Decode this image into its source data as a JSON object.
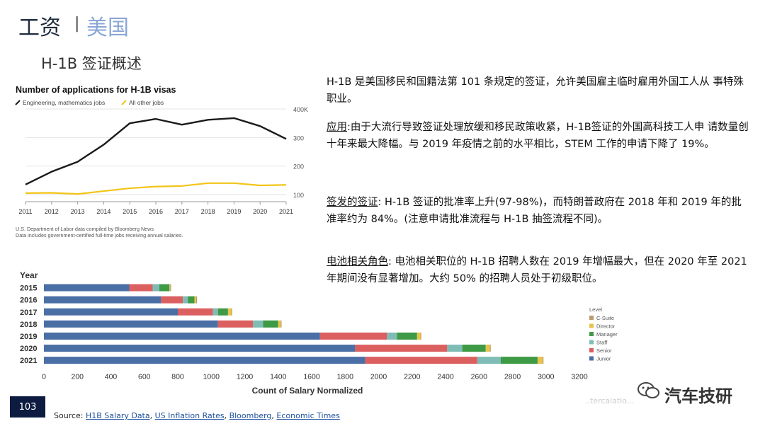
{
  "slide": {
    "title_main": "工资",
    "title_sep": "|",
    "title_region": "美国",
    "subtitle": "H-1B 签证概述",
    "page_number": "103",
    "source_prefix": "Source: ",
    "sources": [
      "H1B Salary Data",
      "US Inflation Rates",
      "Bloomberg",
      "Economic Times"
    ],
    "source_sep": ", ",
    "watermark": "汽车技研",
    "watermark_url": "..tercalatio..."
  },
  "paragraphs": {
    "intro": "H-1B 是美国移民和国籍法第 101 条规定的签证，允许美国雇主临时雇用外国工人从 事特殊职业。",
    "application_label": "应用",
    "application_text": ":由于大流行导致签证处理放缓和移民政策收紧，H-1B签证的外国高科技工人申 请数量创十年来最大降幅。与 2019 年疫情之前的水平相比，STEM 工作的申请下降了 19%。",
    "issuance_label": "签发的签证",
    "issuance_text": ": H-1B 签证的批准率上升(97-98%)，而特朗普政府在 2018 年和 2019 年的批准率约为 84%。(注意申请批准流程与 H-1B 抽签流程不同)。",
    "battery_label": "电池相关角色",
    "battery_text": ": 电池相关职位的 H-1B 招聘人数在 2019 年增幅最大，但在 2020 年至 2021 年期间没有显著增加。大约 50% 的招聘人员处于初级职位。"
  },
  "colors": {
    "line_eng": "#1a1a1a",
    "line_other": "#f2c515",
    "junior": "#4a6fa5",
    "senior": "#dc5f60",
    "staff": "#7fbcb6",
    "manager": "#3e9a45",
    "director": "#e8c44c",
    "c_suite": "#b89c6f"
  },
  "chart_data": [
    {
      "type": "line",
      "title": "Number of applications for H-1B visas",
      "x": [
        2011,
        2012,
        2013,
        2014,
        2015,
        2016,
        2017,
        2018,
        2019,
        2020,
        2021
      ],
      "series": [
        {
          "name": "Engineering, mathematics jobs",
          "values": [
            135,
            180,
            215,
            275,
            350,
            365,
            345,
            362,
            368,
            340,
            295
          ]
        },
        {
          "name": "All other jobs",
          "values": [
            105,
            106,
            102,
            112,
            122,
            128,
            130,
            140,
            140,
            132,
            134
          ]
        }
      ],
      "ylim": [
        75,
        405
      ],
      "y_ticks": [
        100,
        200,
        300,
        400
      ],
      "y_tick_labels": [
        "100",
        "200",
        "300",
        "400K"
      ],
      "legend": "top-left",
      "notes": [
        "U.S. Department of Labor data compiled by Bloomberg News",
        "Data includes government-certified full-time jobs receiving annual salaries."
      ]
    },
    {
      "type": "bar",
      "orientation": "horizontal",
      "stacked": true,
      "ytitle": "Year",
      "categories": [
        "2015",
        "2016",
        "2017",
        "2018",
        "2019",
        "2020",
        "2021"
      ],
      "xlabel": "Count of Salary Normalized",
      "xlim": [
        0,
        3200
      ],
      "x_ticks": [
        0,
        200,
        400,
        600,
        800,
        1000,
        1200,
        1400,
        1600,
        1800,
        2000,
        2200,
        2400,
        2600,
        2800,
        3000,
        3200
      ],
      "legend_title": "Level",
      "legend": "right",
      "series": [
        {
          "name": "Junior",
          "values": [
            510,
            700,
            800,
            1040,
            1650,
            1860,
            1920
          ]
        },
        {
          "name": "Senior",
          "values": [
            140,
            130,
            210,
            210,
            400,
            550,
            670
          ]
        },
        {
          "name": "Staff",
          "values": [
            40,
            30,
            30,
            60,
            60,
            90,
            140
          ]
        },
        {
          "name": "Manager",
          "values": [
            60,
            40,
            60,
            90,
            120,
            140,
            220
          ]
        },
        {
          "name": "Director",
          "values": [
            5,
            10,
            20,
            15,
            20,
            25,
            30
          ]
        },
        {
          "name": "C-Suite",
          "values": [
            5,
            5,
            5,
            5,
            5,
            5,
            5
          ]
        }
      ],
      "legend_order": [
        "C-Suite",
        "Director",
        "Manager",
        "Staff",
        "Senior",
        "Junior"
      ]
    }
  ]
}
